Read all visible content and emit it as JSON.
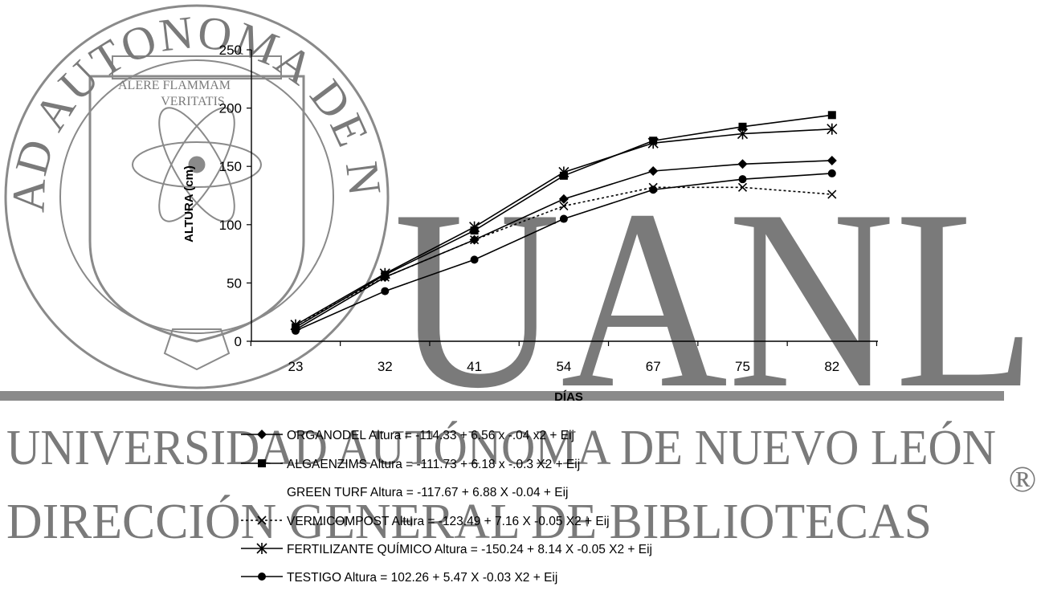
{
  "watermark": {
    "seal_arc_text": "UNIVERSIDAD AUTONOMA DE NUEVO LEON",
    "seal_motto_1": "ALERE FLAMMAM",
    "seal_motto_2": "VERITATIS",
    "big_letters": "UANL",
    "line1": "UNIVERSIDAD AUTÓNOMA DE NUEVO LEÓN",
    "line2": "DIRECCIÓN GENERAL DE BIBLIOTECAS",
    "registered": "®",
    "color": "#7a7a7a"
  },
  "chart_data": {
    "type": "line",
    "xlabel": "DÍAS",
    "ylabel": "ALTURA (cm)",
    "ylim": [
      0,
      250
    ],
    "yticks": [
      "0",
      "50",
      "100",
      "150",
      "200",
      "250"
    ],
    "categories": [
      "23",
      "32",
      "41",
      "54",
      "67",
      "75",
      "82"
    ],
    "grid": false,
    "legend_position": "bottom",
    "series": [
      {
        "name": "ORGANODEL Altura = -114.33 + 6.56 x -.04 x2 + Eij",
        "marker": "diamond",
        "line": "solid",
        "values": [
          10,
          55,
          87,
          122,
          146,
          152,
          155
        ]
      },
      {
        "name": "ALGAENZIMS Altura = -111.73 + 6.18 x -.0.3 X2 + Eij",
        "marker": "square",
        "line": "solid",
        "values": [
          12,
          57,
          95,
          142,
          172,
          184,
          194
        ]
      },
      {
        "name": "GREEN TURF Altura = -117.67 + 6.88 X -0.04 + Eij",
        "marker": "none",
        "line": "none",
        "values": [
          10,
          54,
          86,
          120,
          144,
          151,
          154
        ]
      },
      {
        "name": "VERMICOMPOST Altura = -123.49 + 7.16 X -0.05 X2 + Eij",
        "marker": "x",
        "line": "dotted",
        "values": [
          14,
          55,
          87,
          116,
          132,
          132,
          126
        ]
      },
      {
        "name": "FERTILIZANTE QUÍMICO Altura = -150.24 + 8.14 X -0.05 X2 + Eij",
        "marker": "asterisk",
        "line": "solid",
        "values": [
          14,
          58,
          98,
          145,
          170,
          178,
          182
        ]
      },
      {
        "name": "TESTIGO Altura = 102.26 + 5.47 X -0.03 X2 + Eij",
        "marker": "circle",
        "line": "solid",
        "values": [
          9,
          43,
          70,
          105,
          130,
          139,
          144
        ]
      }
    ]
  }
}
